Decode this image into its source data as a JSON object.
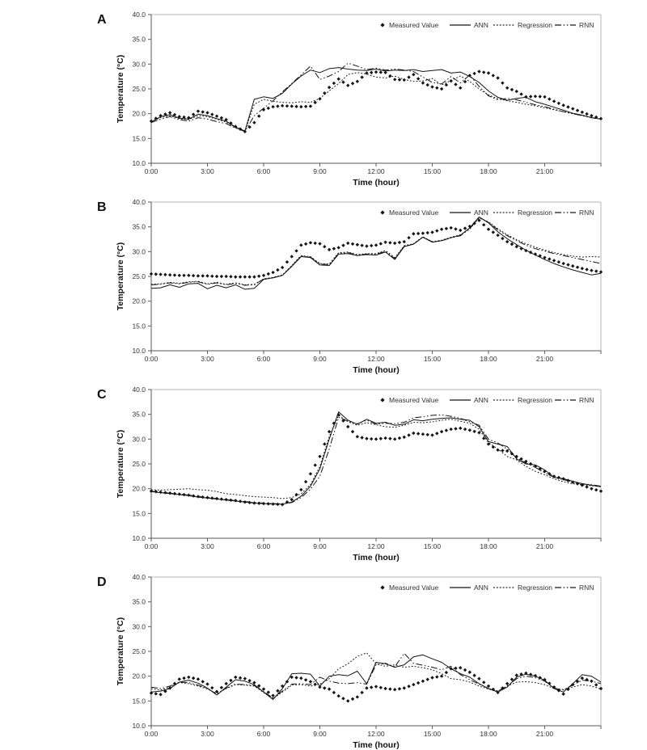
{
  "colors": {
    "series": "#141414",
    "axis_line": "#5a5a5a",
    "frame_line": "#b4b4b4",
    "tick_text": "#333333",
    "title_text": "#111111",
    "background": "#ffffff"
  },
  "axes": {
    "xlabel": "Time (hour)",
    "ylabel": "Temperature (°C)",
    "xlim": [
      0,
      24
    ],
    "ylim": [
      10,
      40
    ],
    "xtick_values": [
      0,
      3,
      6,
      9,
      12,
      15,
      18,
      21
    ],
    "xtick_labels": [
      "0:00",
      "3:00",
      "6:00",
      "9:00",
      "12:00",
      "15:00",
      "18:00",
      "21:00"
    ],
    "ytick_values": [
      10,
      15,
      20,
      25,
      30,
      35,
      40
    ],
    "ytick_labels": [
      "10.0",
      "15.0",
      "20.0",
      "25.0",
      "30.0",
      "35.0",
      "40.0"
    ],
    "grid": false
  },
  "legend": {
    "position": "top-right-inside",
    "items": [
      {
        "label": "Measured Value",
        "style": "marker"
      },
      {
        "label": "ANN",
        "style": "solid"
      },
      {
        "label": "Regression",
        "style": "dotted"
      },
      {
        "label": "RNN",
        "style": "dashdot"
      }
    ]
  },
  "chart_data": [
    {
      "panel": "A",
      "type": "line",
      "x_start": 0,
      "x_step": 0.5,
      "xlabel": "Time (hour)",
      "ylabel": "Temperature (°C)",
      "ylim": [
        10,
        40
      ],
      "series": [
        {
          "name": "Measured Value",
          "style": "marker",
          "values": [
            18.5,
            19.6,
            20.2,
            19.4,
            19.2,
            20.5,
            20.2,
            19.5,
            18.8,
            17.4,
            16.4,
            18.2,
            20.8,
            21.4,
            21.6,
            21.5,
            21.4,
            21.5,
            23.0,
            25.3,
            27.0,
            25.7,
            26.5,
            28.2,
            28.4,
            28.3,
            26.9,
            26.8,
            27.9,
            26.2,
            25.4,
            25.0,
            26.6,
            25.2,
            27.7,
            28.5,
            28.2,
            27.2,
            25.2,
            24.5,
            23.4,
            23.5,
            23.4,
            22.5,
            21.7,
            21.0,
            20.3,
            19.6,
            19.0
          ]
        },
        {
          "name": "ANN",
          "style": "solid",
          "values": [
            18.3,
            19.4,
            19.8,
            19.1,
            18.9,
            19.9,
            19.6,
            19.0,
            18.5,
            17.3,
            16.5,
            22.9,
            23.4,
            23.1,
            24.1,
            26.0,
            27.6,
            28.8,
            28.3,
            29.1,
            29.3,
            29.0,
            28.8,
            28.7,
            29.0,
            28.6,
            28.8,
            28.7,
            28.9,
            28.5,
            28.7,
            28.9,
            28.2,
            28.4,
            27.5,
            26.3,
            24.6,
            23.3,
            22.7,
            23.1,
            23.3,
            22.4,
            21.9,
            21.3,
            20.7,
            20.1,
            19.7,
            19.2,
            18.9
          ]
        },
        {
          "name": "Regression",
          "style": "dotted",
          "values": [
            18.4,
            19.2,
            19.6,
            19.0,
            18.8,
            19.6,
            19.4,
            18.9,
            18.3,
            17.2,
            16.4,
            21.9,
            22.9,
            22.5,
            22.3,
            22.2,
            22.4,
            22.3,
            23.1,
            24.6,
            26.1,
            27.9,
            28.3,
            28.0,
            27.4,
            27.2,
            27.6,
            26.9,
            26.5,
            26.6,
            27.1,
            25.8,
            26.7,
            27.6,
            26.5,
            25.0,
            23.8,
            23.0,
            22.6,
            22.3,
            21.9,
            21.6,
            21.2,
            20.8,
            20.4,
            20.0,
            19.6,
            19.2,
            18.9
          ]
        },
        {
          "name": "RNN",
          "style": "dashdot",
          "values": [
            18.2,
            18.9,
            19.4,
            18.8,
            18.5,
            19.2,
            18.9,
            18.4,
            18.0,
            17.1,
            16.4,
            19.6,
            21.1,
            22.6,
            24.4,
            26.1,
            27.8,
            29.6,
            26.9,
            27.6,
            28.5,
            30.2,
            29.6,
            28.9,
            29.2,
            28.8,
            29.0,
            28.8,
            28.5,
            27.4,
            26.3,
            26.0,
            27.5,
            26.2,
            27.8,
            25.5,
            23.6,
            22.8,
            23.1,
            22.8,
            22.3,
            21.8,
            21.4,
            20.9,
            20.4,
            20.0,
            19.6,
            19.2,
            18.9
          ]
        }
      ]
    },
    {
      "panel": "B",
      "type": "line",
      "x_start": 0,
      "x_step": 0.5,
      "xlabel": "Time (hour)",
      "ylabel": "Temperature (°C)",
      "ylim": [
        10,
        40
      ],
      "series": [
        {
          "name": "Measured Value",
          "style": "marker",
          "values": [
            25.5,
            25.4,
            25.3,
            25.2,
            25.2,
            25.1,
            25.1,
            25.0,
            25.0,
            24.9,
            24.9,
            24.9,
            25.2,
            25.8,
            26.8,
            29.0,
            31.3,
            31.8,
            31.6,
            30.4,
            30.8,
            31.7,
            31.4,
            31.1,
            31.3,
            31.9,
            31.7,
            32.0,
            33.6,
            33.7,
            33.9,
            34.5,
            34.8,
            34.3,
            35.1,
            36.3,
            34.5,
            33.3,
            32.0,
            31.0,
            30.2,
            29.5,
            28.8,
            28.2,
            27.6,
            27.1,
            26.6,
            26.2,
            25.9
          ]
        },
        {
          "name": "ANN",
          "style": "solid",
          "values": [
            22.6,
            22.7,
            23.3,
            22.8,
            23.5,
            23.6,
            22.5,
            23.2,
            22.7,
            23.3,
            22.4,
            22.6,
            24.4,
            24.7,
            25.2,
            27.0,
            29.0,
            28.8,
            27.3,
            27.2,
            29.5,
            29.6,
            29.2,
            29.4,
            29.3,
            29.9,
            28.4,
            31.0,
            31.5,
            32.9,
            31.9,
            32.2,
            32.8,
            33.3,
            34.8,
            37.0,
            35.8,
            34.0,
            32.6,
            31.4,
            30.3,
            29.3,
            28.4,
            27.6,
            26.9,
            26.3,
            25.8,
            25.3,
            25.6
          ]
        },
        {
          "name": "Regression",
          "style": "dotted",
          "values": [
            23.4,
            23.5,
            23.8,
            23.6,
            23.9,
            24.0,
            23.5,
            23.8,
            23.4,
            23.7,
            23.3,
            23.4,
            24.5,
            24.8,
            25.3,
            27.2,
            29.2,
            29.0,
            27.6,
            27.5,
            29.8,
            29.9,
            29.4,
            29.6,
            29.6,
            30.2,
            28.8,
            31.2,
            31.6,
            33.0,
            32.0,
            32.3,
            32.9,
            33.4,
            34.5,
            36.8,
            36.0,
            34.6,
            33.4,
            32.4,
            31.6,
            30.9,
            30.3,
            29.8,
            29.4,
            29.1,
            28.9,
            29.0,
            28.9
          ]
        },
        {
          "name": "RNN",
          "style": "dashdot",
          "values": [
            23.3,
            23.4,
            23.7,
            23.5,
            23.8,
            23.9,
            23.4,
            23.7,
            23.3,
            23.6,
            23.2,
            23.3,
            24.5,
            24.7,
            25.2,
            27.1,
            29.1,
            28.9,
            27.5,
            27.4,
            29.6,
            29.8,
            29.3,
            29.5,
            29.5,
            30.0,
            28.6,
            31.1,
            31.5,
            32.9,
            32.0,
            32.2,
            32.8,
            33.2,
            34.6,
            36.9,
            35.9,
            34.4,
            33.2,
            32.2,
            31.3,
            30.6,
            30.1,
            29.6,
            29.2,
            28.8,
            28.4,
            28.0,
            27.6
          ]
        }
      ]
    },
    {
      "panel": "C",
      "type": "line",
      "x_start": 0,
      "x_step": 0.5,
      "xlabel": "Time (hour)",
      "ylabel": "Temperature (°C)",
      "ylim": [
        10,
        40
      ],
      "series": [
        {
          "name": "Measured Value",
          "style": "marker",
          "values": [
            19.5,
            19.3,
            19.1,
            18.9,
            18.7,
            18.4,
            18.2,
            18.0,
            17.8,
            17.6,
            17.3,
            17.1,
            17.0,
            16.9,
            16.8,
            17.8,
            19.8,
            23.0,
            26.5,
            31.5,
            34.9,
            32.5,
            30.5,
            30.1,
            30.0,
            30.2,
            30.0,
            30.4,
            31.2,
            31.0,
            30.8,
            31.5,
            32.0,
            32.2,
            31.8,
            31.3,
            29.0,
            27.8,
            27.6,
            26.5,
            25.5,
            24.5,
            23.5,
            22.5,
            22.0,
            21.3,
            20.7,
            20.0,
            19.5
          ]
        },
        {
          "name": "ANN",
          "style": "solid",
          "values": [
            19.4,
            19.2,
            19.0,
            18.8,
            18.6,
            18.3,
            18.1,
            17.9,
            17.7,
            17.5,
            17.3,
            17.1,
            17.0,
            16.9,
            16.9,
            17.3,
            18.5,
            20.5,
            24.0,
            30.0,
            35.5,
            33.8,
            33.0,
            34.0,
            33.2,
            33.4,
            32.8,
            33.0,
            33.9,
            33.7,
            34.0,
            34.2,
            34.3,
            34.0,
            33.8,
            32.5,
            29.5,
            29.0,
            28.5,
            26.0,
            25.0,
            24.8,
            23.8,
            22.3,
            22.0,
            21.5,
            21.0,
            20.7,
            20.4
          ]
        },
        {
          "name": "Regression",
          "style": "dotted",
          "values": [
            19.8,
            19.7,
            19.8,
            19.9,
            20.0,
            19.8,
            19.7,
            19.4,
            19.0,
            18.8,
            18.6,
            18.4,
            18.3,
            18.2,
            18.0,
            18.2,
            19.0,
            20.8,
            24.5,
            30.5,
            34.8,
            33.5,
            32.8,
            33.3,
            32.9,
            32.5,
            32.4,
            32.8,
            33.4,
            33.3,
            33.5,
            33.8,
            34.0,
            33.6,
            33.2,
            32.0,
            29.3,
            28.0,
            26.5,
            25.8,
            24.5,
            23.5,
            22.8,
            22.0,
            21.4,
            21.0,
            20.8,
            20.6,
            20.4
          ]
        },
        {
          "name": "RNN",
          "style": "dashdot",
          "values": [
            19.5,
            19.3,
            19.1,
            18.9,
            18.7,
            18.5,
            18.2,
            18.0,
            17.8,
            17.6,
            17.4,
            17.2,
            17.1,
            17.0,
            16.9,
            17.2,
            18.2,
            19.9,
            22.5,
            28.0,
            34.4,
            33.6,
            33.1,
            33.8,
            33.0,
            33.2,
            33.1,
            33.4,
            34.3,
            34.5,
            34.8,
            34.9,
            34.6,
            34.2,
            33.5,
            32.8,
            30.0,
            29.2,
            28.0,
            26.2,
            25.2,
            24.3,
            23.2,
            22.3,
            21.8,
            21.4,
            21.0,
            20.8,
            20.5
          ]
        }
      ]
    },
    {
      "panel": "D",
      "type": "line",
      "x_start": 0,
      "x_step": 0.5,
      "xlabel": "Time (hour)",
      "ylabel": "Temperature (°C)",
      "ylim": [
        10,
        40
      ],
      "series": [
        {
          "name": "Measured Value",
          "style": "marker",
          "values": [
            16.6,
            16.3,
            17.6,
            19.4,
            19.8,
            19.4,
            18.4,
            16.9,
            18.5,
            19.8,
            19.5,
            18.7,
            17.4,
            16.1,
            18.0,
            19.8,
            19.6,
            18.9,
            17.8,
            17.4,
            16.0,
            15.0,
            15.8,
            17.6,
            17.9,
            17.5,
            17.3,
            17.6,
            18.3,
            19.0,
            19.7,
            20.0,
            21.5,
            21.7,
            20.8,
            19.5,
            18.0,
            16.7,
            18.5,
            20.2,
            20.6,
            20.1,
            19.3,
            17.8,
            16.4,
            18.3,
            19.6,
            19.0,
            17.5
          ]
        },
        {
          "name": "ANN",
          "style": "solid",
          "values": [
            16.8,
            17.0,
            17.5,
            18.8,
            19.2,
            18.6,
            17.6,
            16.2,
            17.8,
            19.3,
            19.0,
            18.3,
            16.8,
            15.3,
            17.5,
            20.5,
            20.6,
            20.4,
            18.0,
            20.0,
            20.3,
            20.1,
            21.0,
            18.5,
            22.8,
            22.5,
            21.8,
            22.3,
            23.9,
            24.3,
            23.5,
            22.8,
            21.5,
            20.5,
            19.8,
            18.5,
            17.5,
            16.8,
            17.8,
            19.8,
            20.4,
            20.0,
            19.2,
            17.5,
            16.8,
            18.5,
            20.3,
            20.0,
            18.8
          ]
        },
        {
          "name": "Regression",
          "style": "dotted",
          "values": [
            17.5,
            17.2,
            17.8,
            18.7,
            18.5,
            18.0,
            17.4,
            16.5,
            17.5,
            18.3,
            18.2,
            18.0,
            16.7,
            15.5,
            16.8,
            18.2,
            18.3,
            18.0,
            18.4,
            19.5,
            21.5,
            22.5,
            24.0,
            24.7,
            22.5,
            22.0,
            22.3,
            21.8,
            22.0,
            21.7,
            21.3,
            20.5,
            19.5,
            19.3,
            18.8,
            18.0,
            17.4,
            17.0,
            18.0,
            18.8,
            18.9,
            18.7,
            18.3,
            17.5,
            17.3,
            17.8,
            18.3,
            18.0,
            17.4
          ]
        },
        {
          "name": "RNN",
          "style": "dashdot",
          "values": [
            17.8,
            17.5,
            18.0,
            18.8,
            18.7,
            18.2,
            17.5,
            16.4,
            17.6,
            18.4,
            18.3,
            18.1,
            16.9,
            15.6,
            17.0,
            18.4,
            18.5,
            18.3,
            19.8,
            19.0,
            18.6,
            18.5,
            18.7,
            18.4,
            22.3,
            22.6,
            21.9,
            24.6,
            22.6,
            22.2,
            21.8,
            21.3,
            22.0,
            20.3,
            19.3,
            18.4,
            17.5,
            17.0,
            18.0,
            19.5,
            20.0,
            19.7,
            19.0,
            17.6,
            17.2,
            18.2,
            19.2,
            19.0,
            18.5
          ]
        }
      ]
    }
  ]
}
